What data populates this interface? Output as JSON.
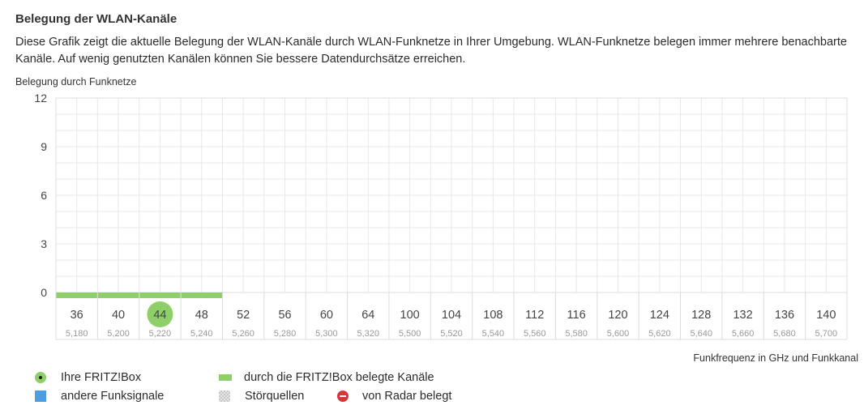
{
  "header": {
    "title": "Belegung der WLAN-Kanäle",
    "description": "Diese Grafik zeigt die aktuelle Belegung der WLAN-Kanäle durch WLAN-Funknetze in Ihrer Umgebung. WLAN-Funknetze belegen immer mehrere benachbarte Kanäle. Auf wenig genutzten Kanälen können Sie bessere Datendurchsätze erreichen."
  },
  "chart_data": {
    "type": "bar",
    "ylabel": "Belegung durch Funknetze",
    "xlabel": "Funkfrequenz in GHz und Funkkanal",
    "ylim": [
      0,
      12
    ],
    "yticks": [
      "0",
      "3",
      "6",
      "9",
      "12"
    ],
    "grid": true,
    "categories": [
      "36",
      "40",
      "44",
      "48",
      "52",
      "56",
      "60",
      "64",
      "100",
      "104",
      "108",
      "112",
      "116",
      "120",
      "124",
      "128",
      "132",
      "136",
      "140"
    ],
    "frequencies": [
      "5,180",
      "5,200",
      "5,220",
      "5,240",
      "5,260",
      "5,280",
      "5,300",
      "5,320",
      "5,500",
      "5,520",
      "5,540",
      "5,560",
      "5,580",
      "5,600",
      "5,620",
      "5,640",
      "5,660",
      "5,680",
      "5,700"
    ],
    "fritzbox_channel": "44",
    "fritzbox_occupied_channels": [
      "36",
      "40",
      "44",
      "48"
    ],
    "other_signals": [
      0,
      0,
      0,
      0,
      0,
      0,
      0,
      0,
      0,
      0,
      0,
      0,
      0,
      0,
      0,
      0,
      0,
      0,
      0
    ],
    "colors": {
      "fritzbox": "#8ecf6a",
      "other_signals": "#4d9de0",
      "radar": "#d9343a",
      "grid": "#e8e8e8",
      "axis_text": "#444444",
      "freq_text": "#999999"
    }
  },
  "legend": {
    "fritzbox": "Ihre FRITZ!Box",
    "fritzbox_channels": "durch die FRITZ!Box belegte Kanäle",
    "other_signals": "andere Funksignale",
    "interference": "Störquellen",
    "radar": "von Radar belegt"
  }
}
